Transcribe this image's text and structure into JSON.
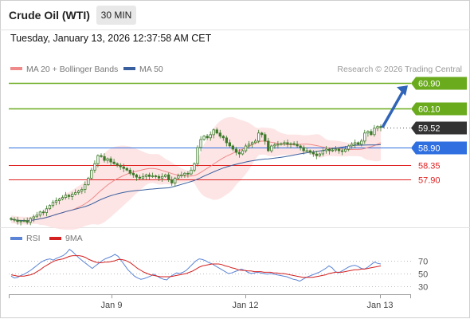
{
  "header": {
    "title": "Crude Oil (WTI)",
    "timeframe": "30 MIN",
    "datetime": "Tuesday, January 13, 2026 12:37:58 AM CET"
  },
  "legend": {
    "ma20_label": "MA 20 + Bollinger Bands",
    "ma50_label": "MA 50",
    "source": "Research © 2026 Trading Central"
  },
  "rsi_legend": {
    "rsi_label": "RSI",
    "ma_label": "9MA"
  },
  "colors": {
    "candle": "#3c7a2a",
    "ma20": "#f08a8a",
    "ma50": "#3a5f9e",
    "bollinger": "#fde0e0",
    "resistance": "#6aab1e",
    "pivot": "#2f6fe0",
    "support": "#e02020",
    "current": "#333333",
    "arrow": "#2f64b8",
    "rsi": "#5b84d6",
    "rsi_ma": "#d42020"
  },
  "chart_data": [
    {
      "type": "candlestick",
      "title": "Crude Oil (WTI)",
      "timeframe": "30 MIN",
      "x_ticks": [
        "Jan 9",
        "Jan 12",
        "Jan 13"
      ],
      "ylim": [
        56.4,
        61.3
      ],
      "levels": [
        {
          "value": 60.9,
          "label": "60.90",
          "role": "resistance"
        },
        {
          "value": 60.1,
          "label": "60.10",
          "role": "resistance"
        },
        {
          "value": 59.52,
          "label": "59.52",
          "role": "current"
        },
        {
          "value": 58.9,
          "label": "58.90",
          "role": "pivot"
        },
        {
          "value": 58.35,
          "label": "58.35",
          "role": "support"
        },
        {
          "value": 57.9,
          "label": "57.90",
          "role": "support"
        }
      ],
      "close": [
        56.67,
        56.65,
        56.6,
        56.62,
        56.63,
        56.58,
        56.7,
        56.75,
        56.8,
        56.9,
        56.88,
        57.0,
        57.1,
        57.2,
        57.25,
        57.3,
        57.35,
        57.42,
        57.38,
        57.45,
        57.5,
        57.55,
        57.6,
        57.75,
        57.95,
        58.2,
        58.4,
        58.65,
        58.62,
        58.5,
        58.55,
        58.45,
        58.4,
        58.35,
        58.3,
        58.25,
        58.2,
        58.1,
        58.05,
        57.98,
        57.95,
        58.0,
        58.05,
        58.0,
        58.02,
        58.0,
        57.95,
        58.0,
        58.05,
        57.9,
        57.8,
        57.95,
        58.02,
        58.05,
        58.1,
        58.08,
        58.2,
        58.4,
        58.9,
        59.15,
        59.25,
        59.2,
        59.3,
        59.45,
        59.35,
        59.25,
        59.2,
        59.05,
        58.95,
        58.85,
        58.75,
        58.7,
        58.8,
        58.95,
        59.0,
        59.05,
        59.1,
        59.35,
        59.3,
        59.1,
        58.8,
        58.95,
        58.98,
        59.0,
        59.02,
        59.05,
        59.0,
        59.02,
        59.0,
        58.95,
        58.9,
        58.8,
        58.8,
        58.75,
        58.7,
        58.65,
        58.7,
        58.8,
        58.85,
        58.8,
        58.82,
        58.85,
        58.8,
        58.78,
        58.85,
        58.95,
        59.0,
        59.05,
        59.0,
        59.1,
        59.35,
        59.4,
        59.3,
        59.5,
        59.55,
        59.52
      ],
      "overlays": [
        {
          "name": "MA 20",
          "with": "Bollinger Bands"
        },
        {
          "name": "MA 50"
        }
      ],
      "forecast_arrow": {
        "from": 59.52,
        "to": 60.9
      }
    },
    {
      "type": "line",
      "title": "RSI",
      "y_ticks": [
        70,
        50,
        30
      ],
      "ylim": [
        10,
        90
      ],
      "series": [
        {
          "name": "RSI",
          "values": [
            46,
            43,
            44,
            47,
            49,
            52,
            55,
            59,
            63,
            67,
            70,
            72,
            73,
            71,
            74,
            76,
            78,
            82,
            88,
            84,
            79,
            74,
            70,
            66,
            62,
            58,
            62,
            66,
            70,
            73,
            75,
            77,
            80,
            77,
            70,
            63,
            56,
            51,
            46,
            43,
            41,
            42,
            44,
            46,
            49,
            46,
            43,
            41,
            40,
            45,
            48,
            51,
            50,
            52,
            55,
            60,
            65,
            70,
            73,
            72,
            70,
            67,
            65,
            62,
            59,
            56,
            53,
            50,
            51,
            53,
            55,
            57,
            55,
            52,
            50,
            51,
            52,
            51,
            50,
            49,
            50,
            49,
            48,
            47,
            46,
            45,
            43,
            41,
            40,
            38,
            41,
            44,
            46,
            48,
            50,
            52,
            55,
            58,
            62,
            59,
            53,
            51,
            54,
            57,
            60,
            62,
            63,
            61,
            58,
            57,
            60,
            64,
            68,
            66,
            65
          ]
        },
        {
          "name": "9MA",
          "values": [
            48,
            47,
            46,
            46,
            46,
            47,
            48,
            50,
            53,
            56,
            60,
            63,
            66,
            69,
            71,
            72,
            73,
            75,
            77,
            78,
            78,
            78,
            77,
            75,
            72,
            70,
            68,
            67,
            67,
            68,
            68,
            69,
            70,
            72,
            72,
            71,
            69,
            66,
            62,
            58,
            55,
            52,
            50,
            48,
            47,
            46,
            45,
            45,
            45,
            45,
            46,
            47,
            48,
            49,
            50,
            52,
            54,
            57,
            60,
            62,
            63,
            64,
            65,
            65,
            65,
            64,
            62,
            61,
            59,
            58,
            56,
            55,
            55,
            54,
            54,
            53,
            53,
            53,
            52,
            52,
            52,
            51,
            51,
            50,
            50,
            49,
            48,
            47,
            46,
            45,
            44,
            44,
            44,
            44,
            45,
            46,
            47,
            48,
            50,
            51,
            52,
            52,
            52,
            53,
            54,
            55,
            56,
            56,
            57,
            57,
            58,
            59,
            60,
            61,
            62
          ]
        }
      ]
    }
  ]
}
